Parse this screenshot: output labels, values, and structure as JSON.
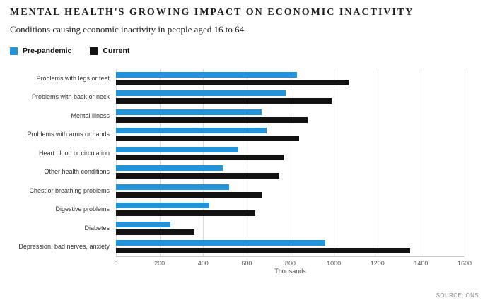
{
  "header": {
    "title": "MENTAL HEALTH'S GROWING IMPACT ON ECONOMIC INACTIVITY",
    "subtitle": "Conditions causing economic inactivity in people aged 16 to 64"
  },
  "legend": [
    {
      "label": "Pre-pandemic",
      "color": "#2394d9"
    },
    {
      "label": "Current",
      "color": "#121212"
    }
  ],
  "chart_data": {
    "type": "bar",
    "orientation": "horizontal",
    "title": "Mental health's growing impact on economic inactivity",
    "subtitle": "Conditions causing economic inactivity in people aged 16 to 64",
    "categories": [
      "Problems with legs or feet",
      "Problems with back or neck",
      "Mental illness",
      "Problems with arms or hands",
      "Heart blood or circulation",
      "Other health conditions",
      "Chest or breathing problems",
      "Digestive problems",
      "Diabetes",
      "Depression, bad nerves, anxiety"
    ],
    "series": [
      {
        "name": "Pre-pandemic",
        "color": "#2394d9",
        "values": [
          830,
          780,
          670,
          690,
          560,
          490,
          520,
          430,
          250,
          960
        ]
      },
      {
        "name": "Current",
        "color": "#121212",
        "values": [
          1070,
          990,
          880,
          840,
          770,
          750,
          670,
          640,
          360,
          1350
        ]
      }
    ],
    "xlabel": "Thousands",
    "xlim": [
      0,
      1600
    ],
    "xticks": [
      0,
      200,
      400,
      600,
      800,
      1000,
      1200,
      1400,
      1600
    ],
    "grid": true,
    "legend_position": "top"
  },
  "footer": {
    "source": "SOURCE: ONS"
  }
}
